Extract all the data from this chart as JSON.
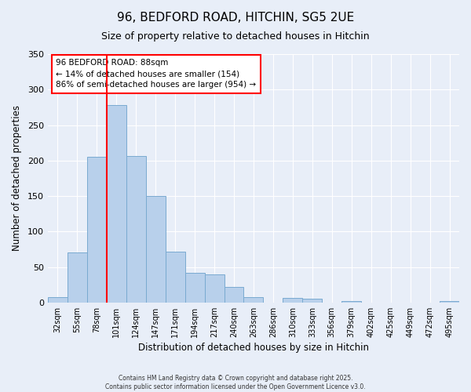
{
  "title": "96, BEDFORD ROAD, HITCHIN, SG5 2UE",
  "subtitle": "Size of property relative to detached houses in Hitchin",
  "xlabel": "Distribution of detached houses by size in Hitchin",
  "ylabel": "Number of detached properties",
  "bar_labels": [
    "32sqm",
    "55sqm",
    "78sqm",
    "101sqm",
    "124sqm",
    "147sqm",
    "171sqm",
    "194sqm",
    "217sqm",
    "240sqm",
    "263sqm",
    "286sqm",
    "310sqm",
    "333sqm",
    "356sqm",
    "379sqm",
    "402sqm",
    "425sqm",
    "449sqm",
    "472sqm",
    "495sqm"
  ],
  "bar_values": [
    7,
    70,
    205,
    278,
    206,
    150,
    72,
    42,
    40,
    22,
    7,
    0,
    6,
    5,
    0,
    2,
    0,
    0,
    0,
    0,
    2
  ],
  "bar_color": "#b8d0eb",
  "bar_edge_color": "#7aaad0",
  "annotation_title": "96 BEDFORD ROAD: 88sqm",
  "annotation_line1": "← 14% of detached houses are smaller (154)",
  "annotation_line2": "86% of semi-detached houses are larger (954) →",
  "ylim": [
    0,
    350
  ],
  "yticks": [
    0,
    50,
    100,
    150,
    200,
    250,
    300,
    350
  ],
  "background_color": "#e8eef8",
  "footer1": "Contains HM Land Registry data © Crown copyright and database right 2025.",
  "footer2": "Contains public sector information licensed under the Open Government Licence v3.0."
}
